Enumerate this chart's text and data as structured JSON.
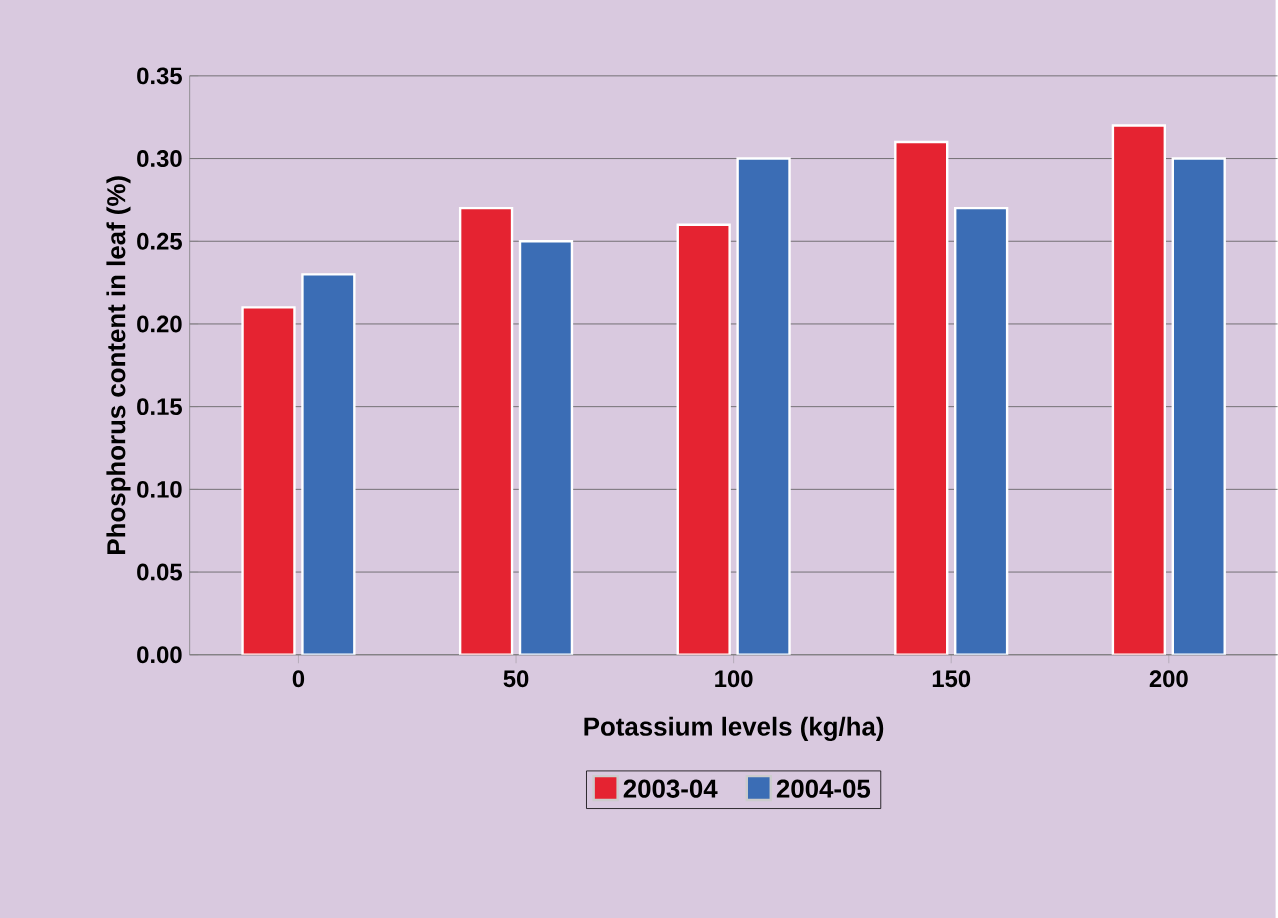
{
  "chart_data": {
    "type": "bar",
    "xlabel": "Potassium levels (kg/ha)",
    "ylabel": "Phosphorus content in leaf (%)",
    "categories": [
      "0",
      "50",
      "100",
      "150",
      "200"
    ],
    "series": [
      {
        "name": "2003-04",
        "color": "#e52331",
        "values": [
          0.21,
          0.27,
          0.26,
          0.31,
          0.32
        ]
      },
      {
        "name": "2004-05",
        "color": "#3b6db5",
        "values": [
          0.23,
          0.25,
          0.3,
          0.27,
          0.3
        ]
      }
    ],
    "ylim": [
      0,
      0.35
    ],
    "yticks": [
      {
        "value": 0,
        "label": "0.00"
      },
      {
        "value": 0.05,
        "label": "0.05"
      },
      {
        "value": 0.1,
        "label": "0.10"
      },
      {
        "value": 0.15,
        "label": "0.15"
      },
      {
        "value": 0.2,
        "label": "0.20"
      },
      {
        "value": 0.25,
        "label": "0.25"
      },
      {
        "value": 0.3,
        "label": "0.30"
      },
      {
        "value": 0.35,
        "label": "0.35"
      }
    ],
    "grid": "y",
    "legend": "bottom"
  }
}
